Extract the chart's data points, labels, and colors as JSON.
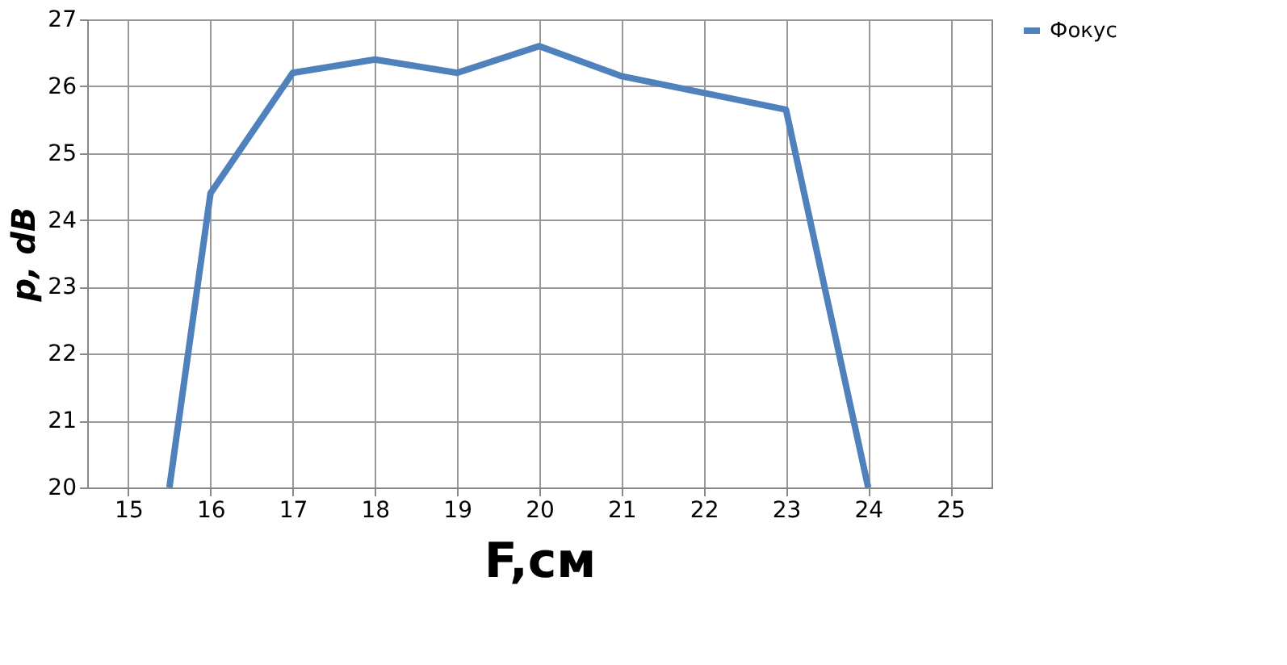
{
  "chart_data": {
    "type": "line",
    "xlabel": "F,см",
    "ylabel": "p, dB",
    "x": [
      15.5,
      16,
      17,
      18,
      19,
      20,
      21,
      22,
      23,
      24
    ],
    "series": [
      {
        "name": "Фокус",
        "color": "#4f81bd",
        "values": [
          20,
          24.4,
          26.2,
          26.4,
          26.2,
          26.6,
          26.15,
          25.9,
          25.65,
          20
        ]
      }
    ],
    "xlim": [
      14.5,
      25.5
    ],
    "xticks": [
      15,
      16,
      17,
      18,
      19,
      20,
      21,
      22,
      23,
      24,
      25
    ],
    "ylim": [
      20,
      27
    ],
    "yticks": [
      20,
      21,
      22,
      23,
      24,
      25,
      26,
      27
    ],
    "grid": true,
    "legend": "right",
    "marker": "none",
    "line_style": "solid"
  }
}
